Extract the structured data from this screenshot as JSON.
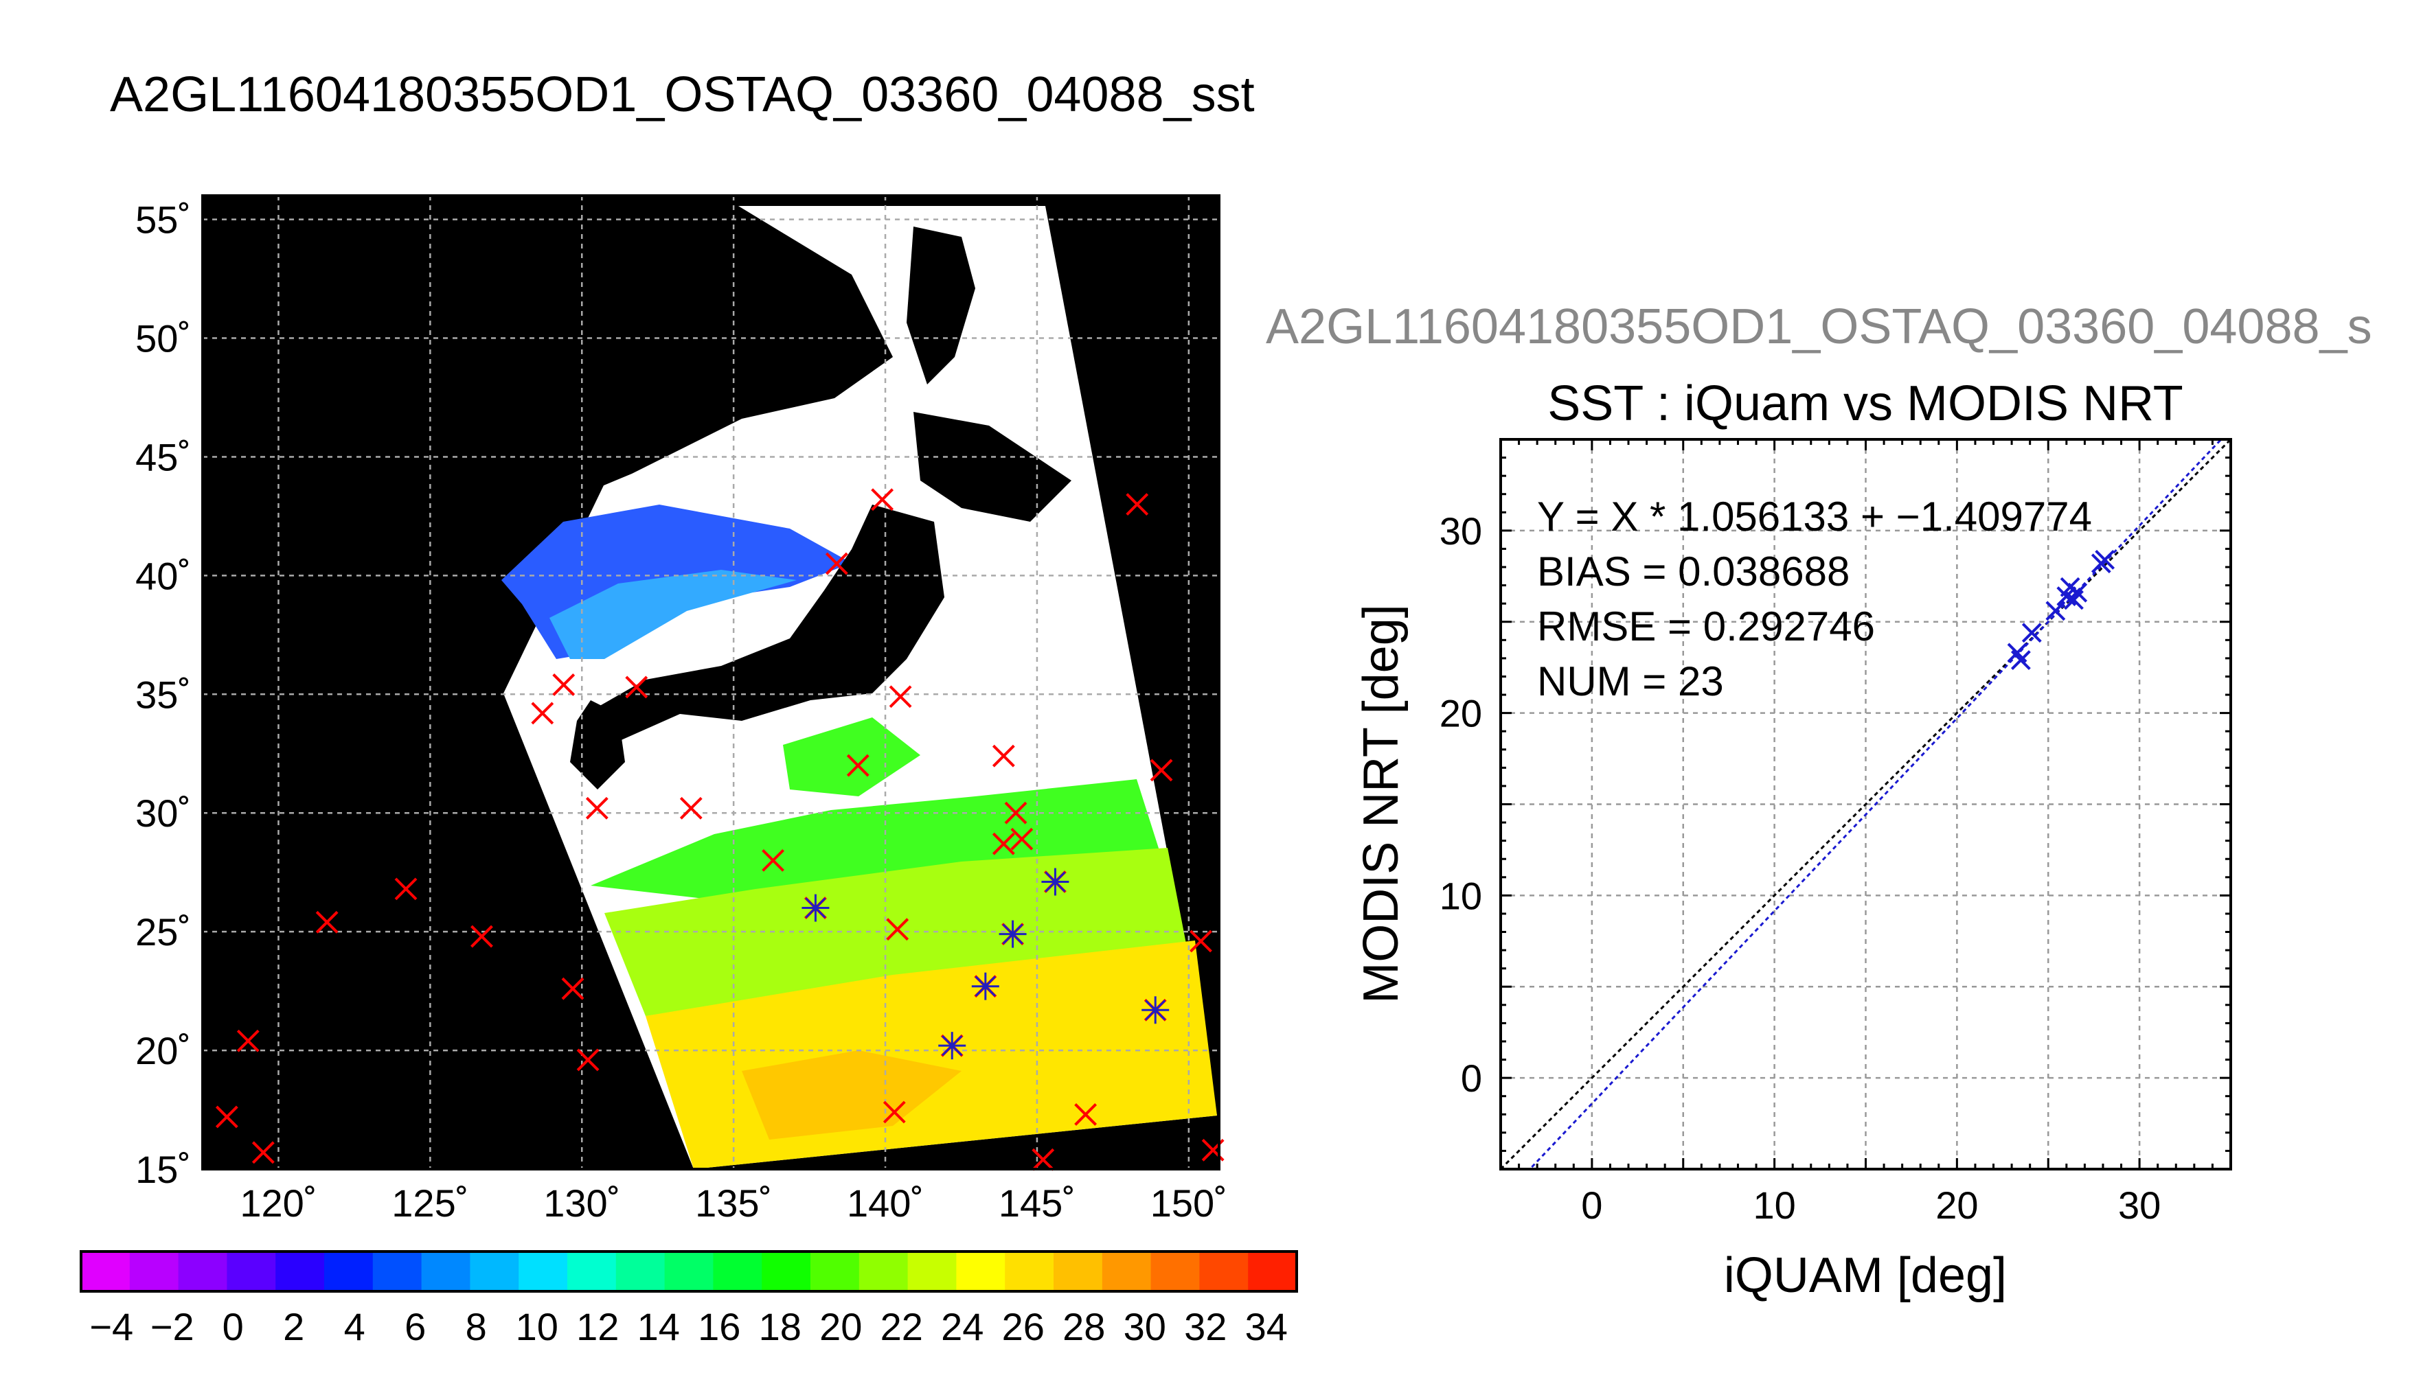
{
  "figure_title": "A2GL11604180355OD1_OSTAQ_03360_04088_sst",
  "chart_data": [
    {
      "type": "map",
      "title": "",
      "xlim": [
        117.5,
        151
      ],
      "ylim": [
        15,
        56
      ],
      "x_ticks": [
        120,
        125,
        130,
        135,
        140,
        145,
        150
      ],
      "y_ticks": [
        15,
        20,
        25,
        30,
        35,
        40,
        45,
        50,
        55
      ],
      "x_tick_labels": [
        "120˚",
        "125˚",
        "130˚",
        "135˚",
        "140˚",
        "145˚",
        "150˚"
      ],
      "y_tick_labels": [
        "15˚",
        "20˚",
        "25˚",
        "30˚",
        "35˚",
        "40˚",
        "45˚",
        "50˚",
        "55˚"
      ],
      "grid": true,
      "background": "#000000",
      "markers": {
        "unmatched_color": "#ff0000",
        "matched_color": "#2020c0",
        "unmatched": [
          {
            "lon": 118.3,
            "lat": 17.2
          },
          {
            "lon": 119.0,
            "lat": 20.4
          },
          {
            "lon": 119.5,
            "lat": 15.7
          },
          {
            "lon": 121.6,
            "lat": 25.4
          },
          {
            "lon": 124.2,
            "lat": 26.8
          },
          {
            "lon": 126.7,
            "lat": 24.8
          },
          {
            "lon": 128.7,
            "lat": 34.2
          },
          {
            "lon": 129.4,
            "lat": 35.4
          },
          {
            "lon": 129.7,
            "lat": 22.6
          },
          {
            "lon": 130.2,
            "lat": 19.6
          },
          {
            "lon": 130.5,
            "lat": 30.2
          },
          {
            "lon": 131.8,
            "lat": 35.3
          },
          {
            "lon": 133.6,
            "lat": 30.2
          },
          {
            "lon": 136.3,
            "lat": 28.0
          },
          {
            "lon": 138.4,
            "lat": 40.5
          },
          {
            "lon": 139.1,
            "lat": 32.0
          },
          {
            "lon": 139.9,
            "lat": 43.2
          },
          {
            "lon": 140.4,
            "lat": 25.1
          },
          {
            "lon": 140.3,
            "lat": 17.4
          },
          {
            "lon": 140.5,
            "lat": 34.9
          },
          {
            "lon": 143.9,
            "lat": 32.4
          },
          {
            "lon": 143.9,
            "lat": 28.7
          },
          {
            "lon": 144.3,
            "lat": 30.0
          },
          {
            "lon": 144.5,
            "lat": 28.9
          },
          {
            "lon": 145.2,
            "lat": 15.4
          },
          {
            "lon": 146.6,
            "lat": 17.3
          },
          {
            "lon": 148.3,
            "lat": 43.0
          },
          {
            "lon": 149.1,
            "lat": 31.8
          },
          {
            "lon": 150.4,
            "lat": 24.6
          },
          {
            "lon": 150.8,
            "lat": 15.8
          }
        ],
        "matched": [
          {
            "lon": 137.7,
            "lat": 26.0
          },
          {
            "lon": 142.2,
            "lat": 20.2
          },
          {
            "lon": 143.3,
            "lat": 22.7
          },
          {
            "lon": 144.2,
            "lat": 24.9
          },
          {
            "lon": 145.6,
            "lat": 27.1
          },
          {
            "lon": 148.9,
            "lat": 21.7
          }
        ]
      }
    },
    {
      "type": "colorbar",
      "vmin": -5,
      "vmax": 35,
      "tick_labels": [
        "−4",
        "−2",
        "0",
        "2",
        "4",
        "6",
        "8",
        "10",
        "12",
        "14",
        "16",
        "18",
        "20",
        "22",
        "24",
        "26",
        "28",
        "30",
        "32",
        "34"
      ],
      "tick_values": [
        -4,
        -2,
        0,
        2,
        4,
        6,
        8,
        10,
        12,
        14,
        16,
        18,
        20,
        22,
        24,
        26,
        28,
        30,
        32,
        34
      ],
      "colors": [
        "#e000ff",
        "#b800ff",
        "#8c00ff",
        "#5a00ff",
        "#2a00ff",
        "#0020ff",
        "#0050ff",
        "#0088ff",
        "#00b8ff",
        "#00e0ff",
        "#00ffd0",
        "#00ff9a",
        "#00ff66",
        "#00ff30",
        "#10ff00",
        "#50ff00",
        "#90ff00",
        "#c8ff00",
        "#ffff00",
        "#ffe000",
        "#ffc000",
        "#ff9800",
        "#ff7000",
        "#ff4800",
        "#ff2000"
      ]
    },
    {
      "type": "scatter",
      "subtitle": "A2GL11604180355OD1_OSTAQ_03360_04088_s",
      "title": "SST : iQuam vs MODIS NRT",
      "xlabel": "iQUAM [deg]",
      "ylabel": "MODIS NRT [deg]",
      "xlim": [
        -5,
        35
      ],
      "ylim": [
        -5,
        35
      ],
      "x_ticks": [
        0,
        10,
        20,
        30
      ],
      "y_ticks": [
        0,
        10,
        20,
        30
      ],
      "grid": true,
      "stats": [
        "Y = X * 1.056133 + −1.409774",
        "BIAS = 0.038688",
        "RMSE = 0.292746",
        "NUM = 23"
      ],
      "fit": {
        "slope": 1.056133,
        "intercept": -1.409774
      },
      "series": [
        {
          "color": "#1a1ad0",
          "points": [
            {
              "x": 23.3,
              "y": 23.3
            },
            {
              "x": 23.5,
              "y": 22.9
            },
            {
              "x": 24.1,
              "y": 24.4
            },
            {
              "x": 25.4,
              "y": 25.6
            },
            {
              "x": 26.0,
              "y": 26.4
            },
            {
              "x": 26.2,
              "y": 26.9
            },
            {
              "x": 26.6,
              "y": 26.6
            },
            {
              "x": 26.4,
              "y": 26.2
            },
            {
              "x": 27.9,
              "y": 28.2
            },
            {
              "x": 28.1,
              "y": 28.4
            }
          ]
        }
      ]
    }
  ]
}
